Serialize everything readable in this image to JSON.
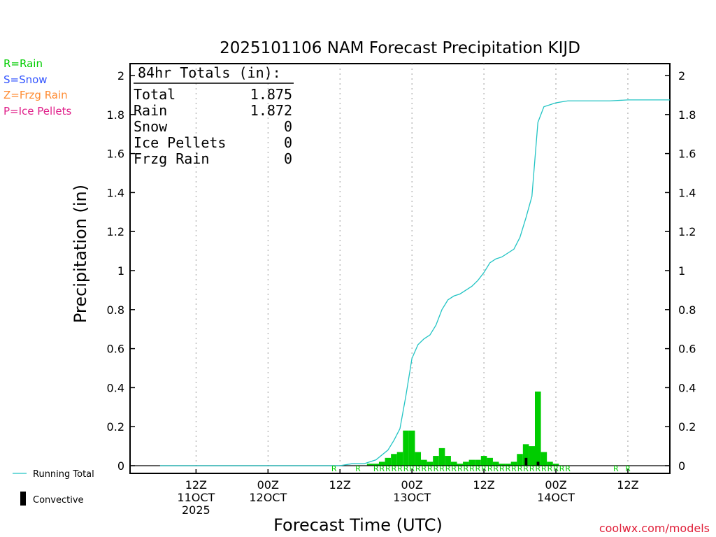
{
  "chart_data": {
    "type": "bar",
    "title": "2025101106 NAM Forecast Precipitation KIJD",
    "xlabel": "Forecast Time (UTC)",
    "ylabel": "Precipitation (in)",
    "ylim": [
      0,
      2
    ],
    "yticks": [
      0,
      0.2,
      0.4,
      0.6,
      0.8,
      1,
      1.2,
      1.4,
      1.6,
      1.8,
      2
    ],
    "ytick_labels": [
      "0",
      "0.2",
      "0.4",
      "0.6",
      "0.8",
      "1",
      "1.2",
      "1.4",
      "1.6",
      "1.8",
      "2"
    ],
    "x_unit": "forecast hour",
    "xlim": [
      -5,
      85
    ],
    "xticks": [
      {
        "hour": 6,
        "line1": "12Z",
        "line2": "11OCT",
        "line3": "2025"
      },
      {
        "hour": 18,
        "line1": "00Z",
        "line2": "12OCT",
        "line3": ""
      },
      {
        "hour": 30,
        "line1": "12Z",
        "line2": "",
        "line3": ""
      },
      {
        "hour": 42,
        "line1": "00Z",
        "line2": "13OCT",
        "line3": ""
      },
      {
        "hour": 54,
        "line1": "12Z",
        "line2": "",
        "line3": ""
      },
      {
        "hour": 66,
        "line1": "00Z",
        "line2": "14OCT",
        "line3": ""
      },
      {
        "hour": 78,
        "line1": "12Z",
        "line2": "",
        "line3": ""
      }
    ],
    "legend_left": [
      {
        "text": "R=Rain",
        "color": "#00cc00"
      },
      {
        "text": "S=Snow",
        "color": "#3355ff"
      },
      {
        "text": "Z=Frzg Rain",
        "color": "#ff8c33"
      },
      {
        "text": "P=Ice Pellets",
        "color": "#e0208a"
      }
    ],
    "legend_bottom": {
      "running_total": "Running Total",
      "convective": "Convective"
    },
    "totals_box": {
      "heading": "84hr Totals (in):",
      "rows": [
        {
          "label": "Total",
          "value": "1.875"
        },
        {
          "label": "Rain",
          "value": "1.872"
        },
        {
          "label": "Snow",
          "value": "0"
        },
        {
          "label": "Ice Pellets",
          "value": "0"
        },
        {
          "label": "Frzg Rain",
          "value": "0"
        }
      ]
    },
    "series": [
      {
        "name": "Hourly precipitation",
        "color": "#00cc00",
        "hours": [
          35,
          36,
          37,
          38,
          39,
          40,
          41,
          42,
          43,
          44,
          45,
          46,
          47,
          48,
          49,
          50,
          51,
          52,
          53,
          54,
          55,
          56,
          57,
          58,
          59,
          60,
          61,
          62,
          63,
          64,
          65,
          66
        ],
        "values": [
          0.01,
          0.01,
          0.02,
          0.04,
          0.06,
          0.07,
          0.18,
          0.18,
          0.07,
          0.03,
          0.02,
          0.05,
          0.09,
          0.05,
          0.02,
          0.01,
          0.02,
          0.03,
          0.03,
          0.05,
          0.04,
          0.02,
          0.01,
          0.01,
          0.02,
          0.06,
          0.11,
          0.1,
          0.38,
          0.07,
          0.02,
          0.01
        ]
      },
      {
        "name": "Convective",
        "color": "#000000",
        "hours": [
          61,
          63
        ],
        "values": [
          0.04,
          0.02
        ]
      },
      {
        "name": "Running Total",
        "color": "#22c4c4",
        "hours": [
          0,
          30,
          32,
          34,
          36,
          38,
          39,
          40,
          41,
          42,
          43,
          44,
          45,
          46,
          47,
          48,
          49,
          50,
          51,
          52,
          53,
          54,
          55,
          56,
          57,
          58,
          59,
          60,
          61,
          62,
          63,
          64,
          65,
          66,
          67,
          68,
          70,
          75,
          78,
          85
        ],
        "values": [
          0,
          0,
          0.01,
          0.01,
          0.03,
          0.08,
          0.13,
          0.19,
          0.36,
          0.55,
          0.62,
          0.65,
          0.67,
          0.72,
          0.8,
          0.85,
          0.87,
          0.88,
          0.9,
          0.92,
          0.95,
          0.99,
          1.04,
          1.06,
          1.07,
          1.09,
          1.11,
          1.17,
          1.27,
          1.38,
          1.76,
          1.84,
          1.85,
          1.86,
          1.865,
          1.87,
          1.87,
          1.87,
          1.875,
          1.875
        ]
      }
    ],
    "ptype_markers": {
      "color": "#00cc00",
      "letter": "R",
      "hours": [
        29,
        33,
        36,
        37,
        38,
        39,
        40,
        41,
        42,
        43,
        44,
        45,
        46,
        47,
        48,
        49,
        50,
        51,
        52,
        53,
        54,
        55,
        56,
        57,
        58,
        59,
        60,
        61,
        62,
        63,
        64,
        65,
        66,
        67,
        68,
        76,
        78
      ]
    }
  },
  "credit": "coolwx.com/models"
}
